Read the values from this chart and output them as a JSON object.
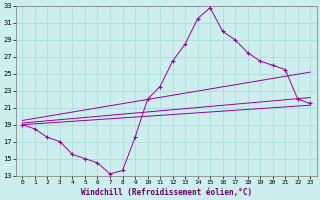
{
  "xlabel": "Windchill (Refroidissement éolien,°C)",
  "background_color": "#cceeed",
  "grid_color": "#aadddd",
  "line_color": "#990099",
  "xlim": [
    -0.5,
    23.5
  ],
  "ylim": [
    13,
    33
  ],
  "xticks": [
    0,
    1,
    2,
    3,
    4,
    5,
    6,
    7,
    8,
    9,
    10,
    11,
    12,
    13,
    14,
    15,
    16,
    17,
    18,
    19,
    20,
    21,
    22,
    23
  ],
  "yticks": [
    13,
    15,
    17,
    19,
    21,
    23,
    25,
    27,
    29,
    31,
    33
  ],
  "curve_main": {
    "x": [
      0,
      1,
      2,
      3,
      4,
      5,
      6,
      7,
      8,
      9,
      10,
      11,
      12,
      13,
      14,
      15,
      16,
      17,
      18,
      19,
      20,
      21,
      22,
      23
    ],
    "y": [
      19,
      18.5,
      17.5,
      17,
      15.5,
      15,
      14.5,
      13.2,
      13.6,
      17.5,
      22,
      23.5,
      26.5,
      28.5,
      31.5,
      32.8,
      30,
      29,
      27.5,
      26.5,
      26,
      25.5,
      22,
      21.5
    ]
  },
  "line1": {
    "x": [
      0,
      23
    ],
    "y": [
      19.0,
      21.3
    ]
  },
  "line2": {
    "x": [
      0,
      23
    ],
    "y": [
      19.2,
      22.2
    ]
  },
  "line3": {
    "x": [
      0,
      23
    ],
    "y": [
      19.5,
      25.2
    ]
  }
}
